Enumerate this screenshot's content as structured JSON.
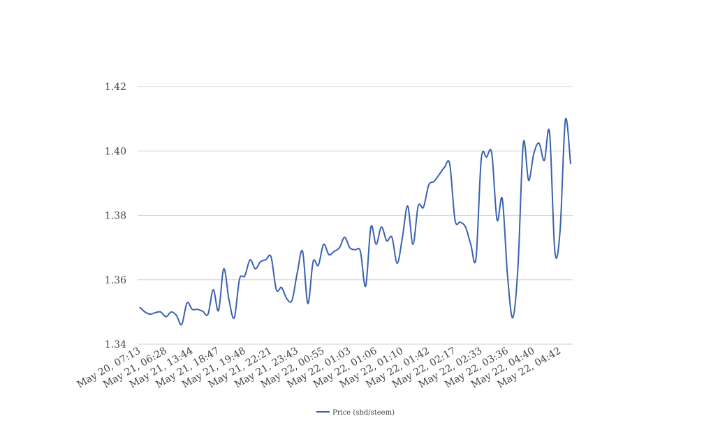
{
  "chart_data": {
    "type": "line",
    "categories": [
      "May 20, 07:13",
      null,
      null,
      null,
      null,
      "May 21, 06:28",
      null,
      null,
      null,
      null,
      "May 21, 13:44",
      null,
      null,
      null,
      null,
      "May 21, 18:47",
      null,
      null,
      null,
      null,
      "May 21, 19:48",
      null,
      null,
      null,
      null,
      "May 21, 22:21",
      null,
      null,
      null,
      null,
      "May 21, 23:43",
      null,
      null,
      null,
      null,
      "May 22, 00:55",
      null,
      null,
      null,
      null,
      "May 22, 01:03",
      null,
      null,
      null,
      null,
      "May 22, 01:06",
      null,
      null,
      null,
      null,
      "May 22, 01:10",
      null,
      null,
      null,
      null,
      "May 22, 01:42",
      null,
      null,
      null,
      null,
      "May 22, 02:17",
      null,
      null,
      null,
      null,
      "May 22, 02:33",
      null,
      null,
      null,
      null,
      "May 22, 03:36",
      null,
      null,
      null,
      null,
      "May 22, 04:40",
      null,
      null,
      null,
      null,
      "May 22, 04:42",
      null,
      null
    ],
    "series": [
      {
        "name": "Price (sbd/steem)",
        "color": "#3a62b0",
        "values": [
          1.3515,
          1.35,
          1.3493,
          1.3498,
          1.35,
          1.3485,
          1.35,
          1.3489,
          1.3461,
          1.3528,
          1.3508,
          1.3508,
          1.3502,
          1.3493,
          1.3569,
          1.3504,
          1.3634,
          1.3537,
          1.3482,
          1.3602,
          1.3612,
          1.3662,
          1.3634,
          1.3656,
          1.3662,
          1.3671,
          1.3569,
          1.3576,
          1.3541,
          1.3537,
          1.3623,
          1.3688,
          1.3526,
          1.3656,
          1.3645,
          1.371,
          1.3678,
          1.3688,
          1.3699,
          1.3732,
          1.3699,
          1.3693,
          1.3688,
          1.358,
          1.3764,
          1.371,
          1.3764,
          1.3721,
          1.3732,
          1.3651,
          1.3732,
          1.3829,
          1.371,
          1.3829,
          1.3825,
          1.3894,
          1.3905,
          1.3927,
          1.3949,
          1.3959,
          1.3786,
          1.3779,
          1.3764,
          1.371,
          1.3667,
          1.3975,
          1.3981,
          1.3992,
          1.3786,
          1.3851,
          1.3612,
          1.3482,
          1.3645,
          1.4024,
          1.3909,
          1.3992,
          1.4024,
          1.397,
          1.4057,
          1.3688,
          1.3753,
          1.4096,
          1.3959
        ]
      }
    ],
    "ylim": [
      1.34,
      1.42
    ],
    "yticks": [
      {
        "value": 1.34,
        "label": "1.34"
      },
      {
        "value": 1.36,
        "label": "1.36"
      },
      {
        "value": 1.38,
        "label": "1.38"
      },
      {
        "value": 1.4,
        "label": "1.40"
      },
      {
        "value": 1.42,
        "label": "1.42"
      }
    ],
    "grid": true,
    "legend": "bottom"
  }
}
